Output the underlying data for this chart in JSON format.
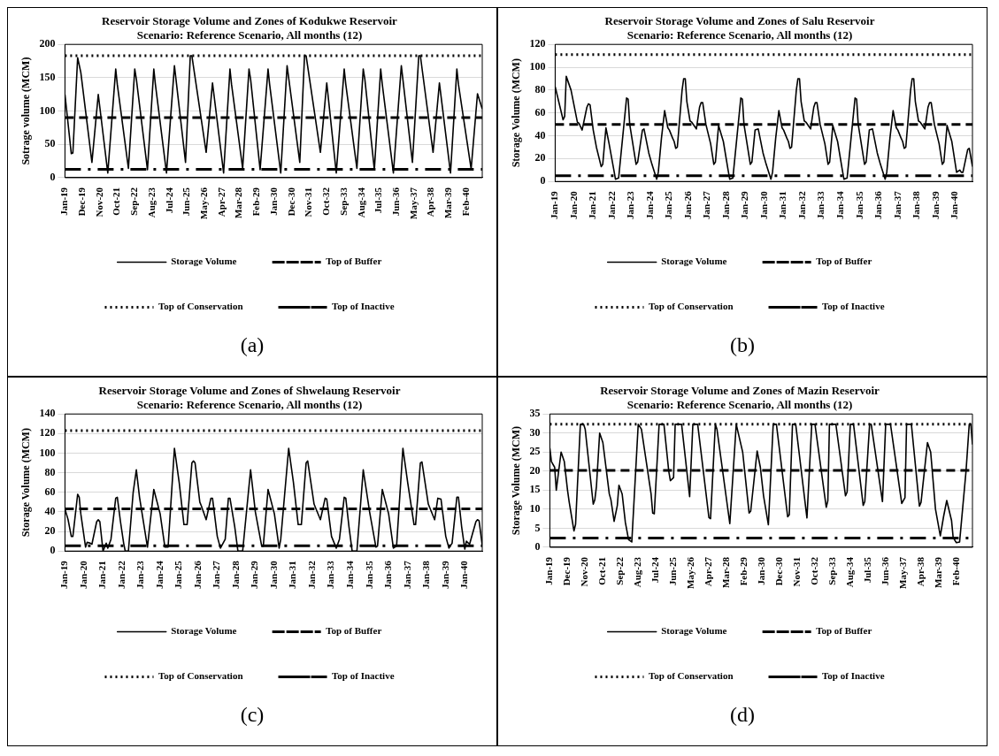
{
  "chart_data": [
    {
      "type": "line",
      "title": "Reservoir Storage Volume and Zones of Kodukwe Reservoir",
      "subtitle": "Scenario: Reference Scenario, All months (12)",
      "ylabel": "Sotrage volume (MCM)",
      "xlim": [
        "2019-01",
        "2040-12"
      ],
      "xticks": [
        {
          "value": "2019-01",
          "label": "Jan-19"
        },
        {
          "value": "2019-12",
          "label": "Dec-19"
        },
        {
          "value": "2020-11",
          "label": "Nov-20"
        },
        {
          "value": "2021-10",
          "label": "Oct-21"
        },
        {
          "value": "2022-09",
          "label": "Sep-22"
        },
        {
          "value": "2023-08",
          "label": "Aug-23"
        },
        {
          "value": "2024-07",
          "label": "Jul-24"
        },
        {
          "value": "2025-06",
          "label": "Jun-25"
        },
        {
          "value": "2026-05",
          "label": "May-26"
        },
        {
          "value": "2027-04",
          "label": "Apr-27"
        },
        {
          "value": "2028-03",
          "label": "Mar-28"
        },
        {
          "value": "2029-02",
          "label": "Feb-29"
        },
        {
          "value": "2030-01",
          "label": "Jan-30"
        },
        {
          "value": "2030-12",
          "label": "Dec-30"
        },
        {
          "value": "2031-11",
          "label": "Nov-31"
        },
        {
          "value": "2032-10",
          "label": "Oct-32"
        },
        {
          "value": "2033-09",
          "label": "Sep-33"
        },
        {
          "value": "2034-08",
          "label": "Aug-34"
        },
        {
          "value": "2035-07",
          "label": "Jul-35"
        },
        {
          "value": "2036-06",
          "label": "Jun-36"
        },
        {
          "value": "2037-05",
          "label": "May-37"
        },
        {
          "value": "2038-04",
          "label": "Apr-38"
        },
        {
          "value": "2039-03",
          "label": "Mar-39"
        },
        {
          "value": "2040-02",
          "label": "Feb-40"
        }
      ],
      "ylim": [
        0,
        200
      ],
      "yticks": [
        0,
        50,
        100,
        150,
        200
      ],
      "grid": "y",
      "legend": "bottom",
      "marker": "none",
      "ref_lines": [
        {
          "axis": "y",
          "value": 90,
          "label": "Top of Buffer",
          "color": "#000000",
          "line_style": "dashed"
        },
        {
          "axis": "y",
          "value": 183,
          "label": "Top of Conservation",
          "color": "#000000",
          "line_style": "dotted"
        },
        {
          "axis": "y",
          "value": 12.5,
          "label": "Top of Inactive",
          "color": "#000000",
          "line_style": "dashdot"
        }
      ],
      "annotations": [
        "(a)"
      ],
      "series": [
        {
          "name": "Storage Volume",
          "color": "#000000",
          "x": [
            "2019-01",
            "2019-05",
            "2019-06",
            "2019-09",
            "2019-11",
            "2020-06",
            "2020-10",
            "2021-04",
            "2021-09",
            "2021-10",
            "2022-05",
            "2022-09",
            "2022-10",
            "2023-05",
            "2023-09",
            "2023-10",
            "2024-05",
            "2024-10",
            "2025-05",
            "2025-08",
            "2025-09",
            "2026-06",
            "2026-10",
            "2027-05",
            "2027-09",
            "2027-10",
            "2028-05",
            "2028-09",
            "2028-10",
            "2029-04",
            "2029-09",
            "2029-10",
            "2030-05",
            "2030-09",
            "2031-05",
            "2031-08",
            "2031-09",
            "2032-06",
            "2032-10",
            "2033-04",
            "2033-09",
            "2033-10",
            "2034-05",
            "2034-09",
            "2034-10",
            "2035-04",
            "2035-08",
            "2035-09",
            "2036-04",
            "2036-09",
            "2037-04",
            "2037-08",
            "2037-09",
            "2038-05",
            "2038-09",
            "2039-04",
            "2039-08",
            "2039-09",
            "2040-05",
            "2040-09",
            "2040-12"
          ],
          "values": [
            125,
            36,
            37,
            180,
            158,
            23,
            125,
            7,
            163,
            140,
            14,
            163,
            148,
            12,
            163,
            140,
            7,
            168,
            23,
            183,
            183,
            38,
            142,
            7,
            163,
            140,
            14,
            163,
            148,
            12,
            163,
            140,
            7,
            168,
            23,
            183,
            183,
            38,
            142,
            7,
            163,
            140,
            14,
            163,
            148,
            12,
            163,
            140,
            7,
            168,
            23,
            183,
            183,
            38,
            142,
            7,
            163,
            140,
            13,
            126,
            103
          ]
        }
      ]
    },
    {
      "type": "line",
      "title": "Reservoir Storage Volume and Zones of Salu Reservoir",
      "subtitle": "Scenario: Reference Scenario, All months (12)",
      "ylabel": "Storage Volume (MCM)",
      "xlim": [
        "2019-01",
        "2040-12"
      ],
      "xticks": [
        {
          "value": "2019-01",
          "label": "Jan-19"
        },
        {
          "value": "2020-01",
          "label": "Jan-20"
        },
        {
          "value": "2021-01",
          "label": "Jan-21"
        },
        {
          "value": "2022-01",
          "label": "Jan-22"
        },
        {
          "value": "2023-01",
          "label": "Jan-23"
        },
        {
          "value": "2024-01",
          "label": "Jan-24"
        },
        {
          "value": "2025-01",
          "label": "Jan-25"
        },
        {
          "value": "2026-01",
          "label": "Jan-26"
        },
        {
          "value": "2027-01",
          "label": "Jan-27"
        },
        {
          "value": "2028-01",
          "label": "Jan-28"
        },
        {
          "value": "2029-01",
          "label": "Jan-29"
        },
        {
          "value": "2030-01",
          "label": "Jan-30"
        },
        {
          "value": "2031-01",
          "label": "Jan-31"
        },
        {
          "value": "2032-01",
          "label": "Jan-32"
        },
        {
          "value": "2033-01",
          "label": "Jan-33"
        },
        {
          "value": "2034-01",
          "label": "Jan-34"
        },
        {
          "value": "2035-01",
          "label": "Jan-35"
        },
        {
          "value": "2036-01",
          "label": "Jan-36"
        },
        {
          "value": "2037-01",
          "label": "Jan-37"
        },
        {
          "value": "2038-01",
          "label": "Jan-38"
        },
        {
          "value": "2039-01",
          "label": "Jan-39"
        },
        {
          "value": "2040-01",
          "label": "Jan-40"
        }
      ],
      "ylim": [
        0,
        120
      ],
      "yticks": [
        0,
        20,
        40,
        60,
        80,
        100,
        120
      ],
      "grid": "y",
      "legend": "bottom",
      "marker": "none",
      "ref_lines": [
        {
          "axis": "y",
          "value": 50,
          "label": "Top of Buffer",
          "color": "#000000",
          "line_style": "dashed"
        },
        {
          "axis": "y",
          "value": 111,
          "label": "Top of Conservation",
          "color": "#000000",
          "line_style": "dotted"
        },
        {
          "axis": "y",
          "value": 5,
          "label": "Top of Inactive",
          "color": "#000000",
          "line_style": "dashdot"
        }
      ],
      "annotations": [
        "(b)"
      ],
      "series": [
        {
          "name": "Storage Volume",
          "color": "#000000",
          "x": [
            "2019-01",
            "2019-06",
            "2019-07",
            "2019-08",
            "2019-11",
            "2020-03",
            "2020-04",
            "2020-06",
            "2020-09",
            "2020-10",
            "2020-11",
            "2021-01",
            "2021-03",
            "2021-06",
            "2021-07",
            "2021-09",
            "2021-11",
            "2022-02",
            "2022-03",
            "2022-05",
            "2022-10",
            "2022-11",
            "2022-12",
            "2023-04",
            "2023-05",
            "2023-08",
            "2023-09",
            "2023-12",
            "2024-02",
            "2024-05",
            "2024-06",
            "2024-08",
            "2024-10",
            "2024-12",
            "2025-01",
            "2025-03",
            "2025-04",
            "2025-05",
            "2025-06",
            "2025-09",
            "2025-10",
            "2025-11",
            "2025-12",
            "2026-02",
            "2026-03",
            "2026-06",
            "2026-08",
            "2026-09",
            "2026-10",
            "2026-12",
            "2027-03",
            "2027-05",
            "2027-06",
            "2027-08",
            "2027-11",
            "2028-02",
            "2028-03",
            "2028-05",
            "2028-10",
            "2028-11",
            "2028-12",
            "2029-04",
            "2029-05",
            "2029-07",
            "2029-09",
            "2029-12",
            "2030-02",
            "2030-05",
            "2030-06",
            "2030-08",
            "2030-10",
            "2030-12",
            "2031-01",
            "2031-03",
            "2031-04",
            "2031-05",
            "2031-06",
            "2031-09",
            "2031-10",
            "2031-11",
            "2031-12",
            "2032-02",
            "2032-03",
            "2032-06",
            "2032-08",
            "2032-09",
            "2032-10",
            "2032-12",
            "2033-03",
            "2033-05",
            "2033-06",
            "2033-08",
            "2033-11",
            "2034-02",
            "2034-03",
            "2034-05",
            "2034-10",
            "2034-11",
            "2034-12",
            "2035-04",
            "2035-05",
            "2035-07",
            "2035-09",
            "2035-12",
            "2036-02",
            "2036-05",
            "2036-06",
            "2036-08",
            "2036-10",
            "2036-12",
            "2037-01",
            "2037-03",
            "2037-04",
            "2037-05",
            "2037-06",
            "2037-09",
            "2037-10",
            "2037-11",
            "2037-12",
            "2038-02",
            "2038-03",
            "2038-06",
            "2038-08",
            "2038-09",
            "2038-10",
            "2038-12",
            "2039-03",
            "2039-05",
            "2039-06",
            "2039-08",
            "2039-11",
            "2040-02",
            "2040-04",
            "2040-05",
            "2040-06",
            "2040-09",
            "2040-10",
            "2040-12"
          ],
          "values": [
            83,
            54,
            57,
            92,
            80,
            52,
            51,
            45,
            65,
            68,
            67,
            45,
            30,
            13,
            15,
            47,
            33,
            10,
            2,
            3,
            73,
            72,
            50,
            15,
            17,
            45,
            46,
            25,
            15,
            2,
            8,
            38,
            62,
            47,
            45,
            38,
            35,
            29,
            30,
            80,
            90,
            90,
            70,
            53,
            52,
            46,
            65,
            69,
            69,
            50,
            33,
            15,
            17,
            49,
            35,
            10,
            2,
            3,
            73,
            72,
            50,
            15,
            17,
            45,
            46,
            25,
            15,
            2,
            8,
            38,
            62,
            47,
            45,
            38,
            35,
            29,
            30,
            80,
            90,
            90,
            70,
            53,
            52,
            46,
            65,
            69,
            69,
            50,
            33,
            15,
            17,
            49,
            35,
            10,
            2,
            3,
            73,
            72,
            50,
            15,
            17,
            45,
            46,
            25,
            15,
            2,
            8,
            38,
            62,
            47,
            45,
            38,
            35,
            29,
            30,
            80,
            90,
            90,
            70,
            53,
            52,
            46,
            65,
            69,
            69,
            50,
            33,
            15,
            17,
            49,
            35,
            8,
            10,
            8,
            8,
            28,
            29,
            13
          ]
        }
      ]
    },
    {
      "type": "line",
      "title": "Reservoir Storage Volume and Zones of Shwelaung Reservoir",
      "subtitle": "Scenario: Reference Scenario, All months (12)",
      "ylabel": "Storage Volume (MCM)",
      "xlim": [
        "2019-01",
        "2040-12"
      ],
      "xticks": [
        {
          "value": "2019-01",
          "label": "Jan-19"
        },
        {
          "value": "2020-01",
          "label": "Jan-20"
        },
        {
          "value": "2021-01",
          "label": "Jan-21"
        },
        {
          "value": "2022-01",
          "label": "Jan-22"
        },
        {
          "value": "2023-01",
          "label": "Jan-23"
        },
        {
          "value": "2024-01",
          "label": "Jan-24"
        },
        {
          "value": "2025-01",
          "label": "Jan-25"
        },
        {
          "value": "2026-01",
          "label": "Jan-26"
        },
        {
          "value": "2027-01",
          "label": "Jan-27"
        },
        {
          "value": "2028-01",
          "label": "Jan-28"
        },
        {
          "value": "2029-01",
          "label": "Jan-29"
        },
        {
          "value": "2030-01",
          "label": "Jan-30"
        },
        {
          "value": "2031-01",
          "label": "Jan-31"
        },
        {
          "value": "2032-01",
          "label": "Jan-32"
        },
        {
          "value": "2033-01",
          "label": "Jan-33"
        },
        {
          "value": "2034-01",
          "label": "Jan-34"
        },
        {
          "value": "2035-01",
          "label": "Jan-35"
        },
        {
          "value": "2036-01",
          "label": "Jan-36"
        },
        {
          "value": "2037-01",
          "label": "Jan-37"
        },
        {
          "value": "2038-01",
          "label": "Jan-38"
        },
        {
          "value": "2039-01",
          "label": "Jan-39"
        },
        {
          "value": "2040-01",
          "label": "Jan-40"
        }
      ],
      "ylim": [
        0,
        140
      ],
      "yticks": [
        0,
        20,
        40,
        60,
        80,
        100,
        120,
        140
      ],
      "grid": "y",
      "legend": "bottom",
      "marker": "none",
      "ref_lines": [
        {
          "axis": "y",
          "value": 43,
          "label": "Top of Buffer",
          "color": "#000000",
          "line_style": "dashed"
        },
        {
          "axis": "y",
          "value": 123,
          "label": "Top of Conservation",
          "color": "#000000",
          "line_style": "dotted"
        },
        {
          "axis": "y",
          "value": 5.5,
          "label": "Top of Inactive",
          "color": "#000000",
          "line_style": "dashdot"
        }
      ],
      "annotations": [
        "(c)"
      ],
      "series": [
        {
          "name": "Storage Volume",
          "color": "#000000",
          "x": [
            "2019-01",
            "2019-03",
            "2019-05",
            "2019-06",
            "2019-09",
            "2019-10",
            "2019-11",
            "2020-02",
            "2020-03",
            "2020-05",
            "2020-06",
            "2020-09",
            "2020-10",
            "2020-11",
            "2021-01",
            "2021-03",
            "2021-04",
            "2021-06",
            "2021-09",
            "2021-10",
            "2021-12",
            "2022-02",
            "2022-03",
            "2022-05",
            "2022-08",
            "2022-10",
            "2022-12",
            "2023-05",
            "2023-09",
            "2024-01",
            "2024-04",
            "2024-06",
            "2024-10",
            "2025-01",
            "2025-04",
            "2025-06",
            "2025-09",
            "2025-10",
            "2025-11",
            "2026-02",
            "2026-03",
            "2026-06",
            "2026-09",
            "2026-10",
            "2027-01",
            "2027-03",
            "2027-06",
            "2027-08",
            "2027-09",
            "2027-12",
            "2028-02",
            "2028-05",
            "2028-10",
            "2029-01",
            "2029-05",
            "2029-06",
            "2029-09",
            "2030-01",
            "2030-04",
            "2030-05",
            "2030-10",
            "2031-01",
            "2031-04",
            "2031-06",
            "2031-09",
            "2031-10",
            "2032-02",
            "2032-03",
            "2032-06",
            "2032-09",
            "2032-10",
            "2033-01",
            "2033-04",
            "2033-06",
            "2033-09",
            "2033-10",
            "2033-12",
            "2034-02",
            "2034-05",
            "2034-09",
            "2035-01",
            "2035-05",
            "2035-06",
            "2035-09",
            "2036-01",
            "2036-04",
            "2036-06",
            "2036-10",
            "2037-01",
            "2037-05",
            "2037-06",
            "2037-09",
            "2037-10",
            "2038-02",
            "2038-03",
            "2038-06",
            "2038-08",
            "2038-10",
            "2039-01",
            "2039-03",
            "2039-05",
            "2039-08",
            "2039-09",
            "2039-11",
            "2040-01",
            "2040-02",
            "2040-04",
            "2040-08",
            "2040-09",
            "2040-10",
            "2040-12"
          ],
          "values": [
            43,
            32,
            15,
            15,
            58,
            55,
            38,
            4,
            9,
            8,
            7,
            30,
            32,
            30,
            0,
            8,
            3,
            12,
            54,
            55,
            30,
            8,
            0,
            0,
            60,
            83,
            55,
            4,
            63,
            38,
            4,
            4,
            105,
            70,
            27,
            27,
            90,
            92,
            90,
            50,
            46,
            32,
            54,
            54,
            15,
            3,
            12,
            54,
            54,
            25,
            0,
            0,
            83,
            40,
            5,
            5,
            63,
            38,
            3,
            12,
            105,
            70,
            27,
            27,
            90,
            92,
            48,
            44,
            32,
            54,
            53,
            15,
            3,
            12,
            55,
            54,
            25,
            0,
            0,
            83,
            40,
            4,
            5,
            63,
            38,
            3,
            5,
            105,
            70,
            27,
            27,
            90,
            91,
            48,
            44,
            32,
            54,
            53,
            15,
            3,
            8,
            55,
            55,
            25,
            2,
            10,
            7,
            30,
            32,
            31,
            6
          ]
        }
      ]
    },
    {
      "type": "line",
      "title": "Reservoir Storage Volume and Zones of Mazin Reservoir",
      "subtitle": "Scenario: Reference Scenario, All months (12)",
      "ylabel": "Storage Volume (MCM)",
      "xlim": [
        "2019-01",
        "2040-12"
      ],
      "xticks": [
        {
          "value": "2019-01",
          "label": "Jan-19"
        },
        {
          "value": "2019-12",
          "label": "Dec-19"
        },
        {
          "value": "2020-11",
          "label": "Nov-20"
        },
        {
          "value": "2021-10",
          "label": "Oct-21"
        },
        {
          "value": "2022-09",
          "label": "Sep-22"
        },
        {
          "value": "2023-08",
          "label": "Aug-23"
        },
        {
          "value": "2024-07",
          "label": "Jul-24"
        },
        {
          "value": "2025-06",
          "label": "Jun-25"
        },
        {
          "value": "2026-05",
          "label": "May-26"
        },
        {
          "value": "2027-04",
          "label": "Apr-27"
        },
        {
          "value": "2028-03",
          "label": "Mar-28"
        },
        {
          "value": "2029-02",
          "label": "Feb-29"
        },
        {
          "value": "2030-01",
          "label": "Jan-30"
        },
        {
          "value": "2030-12",
          "label": "Dec-30"
        },
        {
          "value": "2031-11",
          "label": "Nov-31"
        },
        {
          "value": "2032-10",
          "label": "Oct-32"
        },
        {
          "value": "2033-09",
          "label": "Sep-33"
        },
        {
          "value": "2034-08",
          "label": "Aug-34"
        },
        {
          "value": "2035-07",
          "label": "Jul-35"
        },
        {
          "value": "2036-06",
          "label": "Jun-36"
        },
        {
          "value": "2037-05",
          "label": "May-37"
        },
        {
          "value": "2038-04",
          "label": "Apr-38"
        },
        {
          "value": "2039-03",
          "label": "Mar-39"
        },
        {
          "value": "2040-02",
          "label": "Feb-40"
        }
      ],
      "ylim": [
        0,
        35
      ],
      "yticks": [
        0,
        5,
        10,
        15,
        20,
        25,
        30,
        35
      ],
      "grid": "y",
      "legend": "bottom",
      "marker": "none",
      "ref_lines": [
        {
          "axis": "y",
          "value": 20.2,
          "label": "Top of Buffer",
          "color": "#000000",
          "line_style": "dashed"
        },
        {
          "axis": "y",
          "value": 32.3,
          "label": "Top of Conservation",
          "color": "#000000",
          "line_style": "dotted"
        },
        {
          "axis": "y",
          "value": 2.4,
          "label": "Top of Inactive",
          "color": "#000000",
          "line_style": "dashdot"
        }
      ],
      "annotations": [
        "(d)"
      ],
      "series": [
        {
          "name": "Storage Volume",
          "color": "#000000",
          "x": [
            "2019-01",
            "2019-02",
            "2019-04",
            "2019-05",
            "2019-08",
            "2019-10",
            "2019-12",
            "2020-01",
            "2020-04",
            "2020-05",
            "2020-08",
            "2020-10",
            "2020-11",
            "2021-04",
            "2021-05",
            "2021-06",
            "2021-08",
            "2021-10",
            "2022-02",
            "2022-03",
            "2022-05",
            "2022-07",
            "2022-08",
            "2022-10",
            "2022-12",
            "2023-02",
            "2023-04",
            "2023-08",
            "2023-10",
            "2024-04",
            "2024-05",
            "2024-06",
            "2024-09",
            "2024-12",
            "2025-03",
            "2025-04",
            "2025-06",
            "2025-07",
            "2025-11",
            "2026-04",
            "2026-06",
            "2026-09",
            "2027-04",
            "2027-05",
            "2027-08",
            "2027-09",
            "2028-05",
            "2028-09",
            "2029-01",
            "2029-05",
            "2029-06",
            "2029-10",
            "2029-12",
            "2030-02",
            "2030-05",
            "2030-08",
            "2030-10",
            "2031-05",
            "2031-06",
            "2031-08",
            "2031-10",
            "2032-05",
            "2032-08",
            "2032-10",
            "2033-05",
            "2033-06",
            "2033-07",
            "2033-11",
            "2034-05",
            "2034-06",
            "2034-08",
            "2034-10",
            "2035-04",
            "2035-05",
            "2035-08",
            "2035-09",
            "2036-04",
            "2036-06",
            "2036-09",
            "2037-04",
            "2037-06",
            "2037-07",
            "2037-10",
            "2038-03",
            "2038-04",
            "2038-08",
            "2038-10",
            "2039-01",
            "2039-04",
            "2039-06",
            "2039-08",
            "2039-11",
            "2039-12",
            "2040-02",
            "2040-04",
            "2040-08",
            "2040-10",
            "2040-11",
            "2040-12"
          ],
          "values": [
            26,
            22.5,
            21,
            15,
            25,
            22.5,
            15,
            12,
            4.3,
            6,
            32.3,
            32.3,
            31,
            11.3,
            12.5,
            16,
            30,
            27.5,
            14,
            12.5,
            6.8,
            11,
            16.3,
            14,
            6.5,
            2,
            1.4,
            32.3,
            31,
            14,
            9,
            8.8,
            32.3,
            32.3,
            20,
            17.5,
            18.3,
            32.3,
            32.3,
            13.3,
            32.3,
            32.3,
            7.8,
            7.5,
            32.3,
            31,
            6.2,
            32.3,
            25,
            9,
            9.5,
            25.3,
            21,
            13.5,
            5.9,
            32.3,
            32.3,
            8,
            8.5,
            32.3,
            32.3,
            7.7,
            32.3,
            32.3,
            10.5,
            12.2,
            32.3,
            32.3,
            13.5,
            14.5,
            32.3,
            32.3,
            11,
            12,
            32.3,
            32.3,
            12,
            32.3,
            32.3,
            11.5,
            13,
            32.3,
            32.3,
            10.8,
            11.8,
            27.5,
            25,
            10,
            3,
            8,
            12.3,
            7,
            2.5,
            1.2,
            1.4,
            20,
            32.3,
            32.3,
            27
          ]
        }
      ]
    }
  ]
}
